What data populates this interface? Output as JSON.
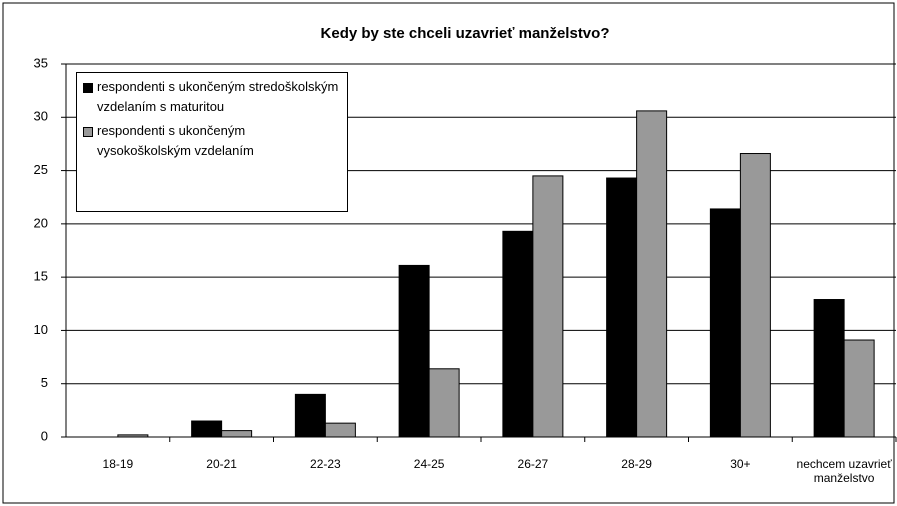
{
  "chart_data": {
    "type": "bar",
    "title": "Kedy by ste chceli uzavrieť manželstvo?",
    "categories": [
      "18-19",
      "20-21",
      "22-23",
      "24-25",
      "26-27",
      "28-29",
      "30+",
      "nechcem uzavrieť manželstvo"
    ],
    "series": [
      {
        "name": "respondenti s ukončeným stredoškolským vzdelaním s maturitou",
        "color": "#000000",
        "values": [
          0,
          1.5,
          4,
          16.1,
          19.3,
          24.3,
          21.4,
          12.9
        ]
      },
      {
        "name": "respondenti s ukončeným vysokoškolským vzdelaním",
        "color": "#999999",
        "values": [
          0.2,
          0.6,
          1.3,
          6.4,
          24.5,
          30.6,
          26.6,
          9.1
        ]
      }
    ],
    "ylim": [
      0,
      35
    ],
    "yticks": [
      0,
      5,
      10,
      15,
      20,
      25,
      30,
      35
    ],
    "grid": true,
    "legend": "upper left"
  }
}
